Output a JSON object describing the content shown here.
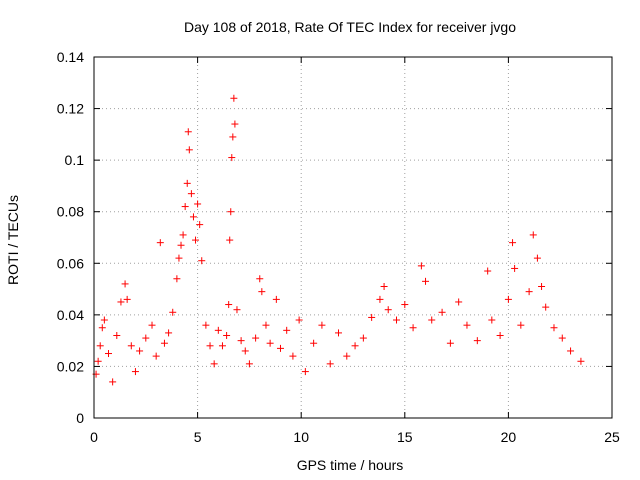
{
  "chart_data": {
    "type": "scatter",
    "title": "Day 108 of 2018, Rate Of TEC Index for receiver jvgo",
    "xlabel": "GPS time / hours",
    "ylabel": "ROTI / TECUs",
    "xlim": [
      0,
      25
    ],
    "ylim": [
      0,
      0.14
    ],
    "xticks": [
      "0",
      "5",
      "10",
      "15",
      "20",
      "25"
    ],
    "yticks": [
      "0",
      "0.02",
      "0.04",
      "0.06",
      "0.08",
      "0.1",
      "0.12",
      "0.14"
    ],
    "grid": true,
    "marker": "plus",
    "color": "#ff0000",
    "series": [
      {
        "name": "ROTI",
        "points": [
          [
            0.1,
            0.017
          ],
          [
            0.2,
            0.022
          ],
          [
            0.3,
            0.028
          ],
          [
            0.4,
            0.035
          ],
          [
            0.5,
            0.038
          ],
          [
            0.7,
            0.025
          ],
          [
            0.9,
            0.014
          ],
          [
            1.1,
            0.032
          ],
          [
            1.3,
            0.045
          ],
          [
            1.5,
            0.052
          ],
          [
            1.6,
            0.046
          ],
          [
            1.8,
            0.028
          ],
          [
            2.0,
            0.018
          ],
          [
            2.2,
            0.026
          ],
          [
            2.5,
            0.031
          ],
          [
            2.8,
            0.036
          ],
          [
            3.0,
            0.024
          ],
          [
            3.2,
            0.068
          ],
          [
            3.4,
            0.029
          ],
          [
            3.6,
            0.033
          ],
          [
            3.8,
            0.041
          ],
          [
            4.0,
            0.054
          ],
          [
            4.1,
            0.062
          ],
          [
            4.2,
            0.067
          ],
          [
            4.3,
            0.071
          ],
          [
            4.4,
            0.082
          ],
          [
            4.5,
            0.091
          ],
          [
            4.55,
            0.111
          ],
          [
            4.6,
            0.104
          ],
          [
            4.7,
            0.087
          ],
          [
            4.8,
            0.078
          ],
          [
            4.9,
            0.069
          ],
          [
            5.0,
            0.083
          ],
          [
            5.1,
            0.075
          ],
          [
            5.2,
            0.061
          ],
          [
            5.4,
            0.036
          ],
          [
            5.6,
            0.028
          ],
          [
            5.8,
            0.021
          ],
          [
            6.0,
            0.034
          ],
          [
            6.2,
            0.028
          ],
          [
            6.4,
            0.032
          ],
          [
            6.5,
            0.044
          ],
          [
            6.55,
            0.069
          ],
          [
            6.6,
            0.08
          ],
          [
            6.65,
            0.101
          ],
          [
            6.7,
            0.109
          ],
          [
            6.75,
            0.124
          ],
          [
            6.8,
            0.114
          ],
          [
            6.9,
            0.042
          ],
          [
            7.1,
            0.03
          ],
          [
            7.3,
            0.026
          ],
          [
            7.5,
            0.021
          ],
          [
            7.8,
            0.031
          ],
          [
            8.0,
            0.054
          ],
          [
            8.1,
            0.049
          ],
          [
            8.3,
            0.036
          ],
          [
            8.5,
            0.029
          ],
          [
            8.8,
            0.046
          ],
          [
            9.0,
            0.027
          ],
          [
            9.3,
            0.034
          ],
          [
            9.6,
            0.024
          ],
          [
            9.9,
            0.038
          ],
          [
            10.2,
            0.018
          ],
          [
            10.6,
            0.029
          ],
          [
            11.0,
            0.036
          ],
          [
            11.4,
            0.021
          ],
          [
            11.8,
            0.033
          ],
          [
            12.2,
            0.024
          ],
          [
            12.6,
            0.028
          ],
          [
            13.0,
            0.031
          ],
          [
            13.4,
            0.039
          ],
          [
            13.8,
            0.046
          ],
          [
            14.0,
            0.051
          ],
          [
            14.2,
            0.042
          ],
          [
            14.6,
            0.038
          ],
          [
            15.0,
            0.044
          ],
          [
            15.4,
            0.035
          ],
          [
            15.8,
            0.059
          ],
          [
            16.0,
            0.053
          ],
          [
            16.3,
            0.038
          ],
          [
            16.8,
            0.041
          ],
          [
            17.2,
            0.029
          ],
          [
            17.6,
            0.045
          ],
          [
            18.0,
            0.036
          ],
          [
            18.5,
            0.03
          ],
          [
            19.0,
            0.057
          ],
          [
            19.2,
            0.038
          ],
          [
            19.6,
            0.032
          ],
          [
            20.0,
            0.046
          ],
          [
            20.2,
            0.068
          ],
          [
            20.3,
            0.058
          ],
          [
            20.6,
            0.036
          ],
          [
            21.0,
            0.049
          ],
          [
            21.2,
            0.071
          ],
          [
            21.4,
            0.062
          ],
          [
            21.6,
            0.051
          ],
          [
            21.8,
            0.043
          ],
          [
            22.2,
            0.035
          ],
          [
            22.6,
            0.031
          ],
          [
            23.0,
            0.026
          ],
          [
            23.5,
            0.022
          ]
        ]
      }
    ]
  }
}
